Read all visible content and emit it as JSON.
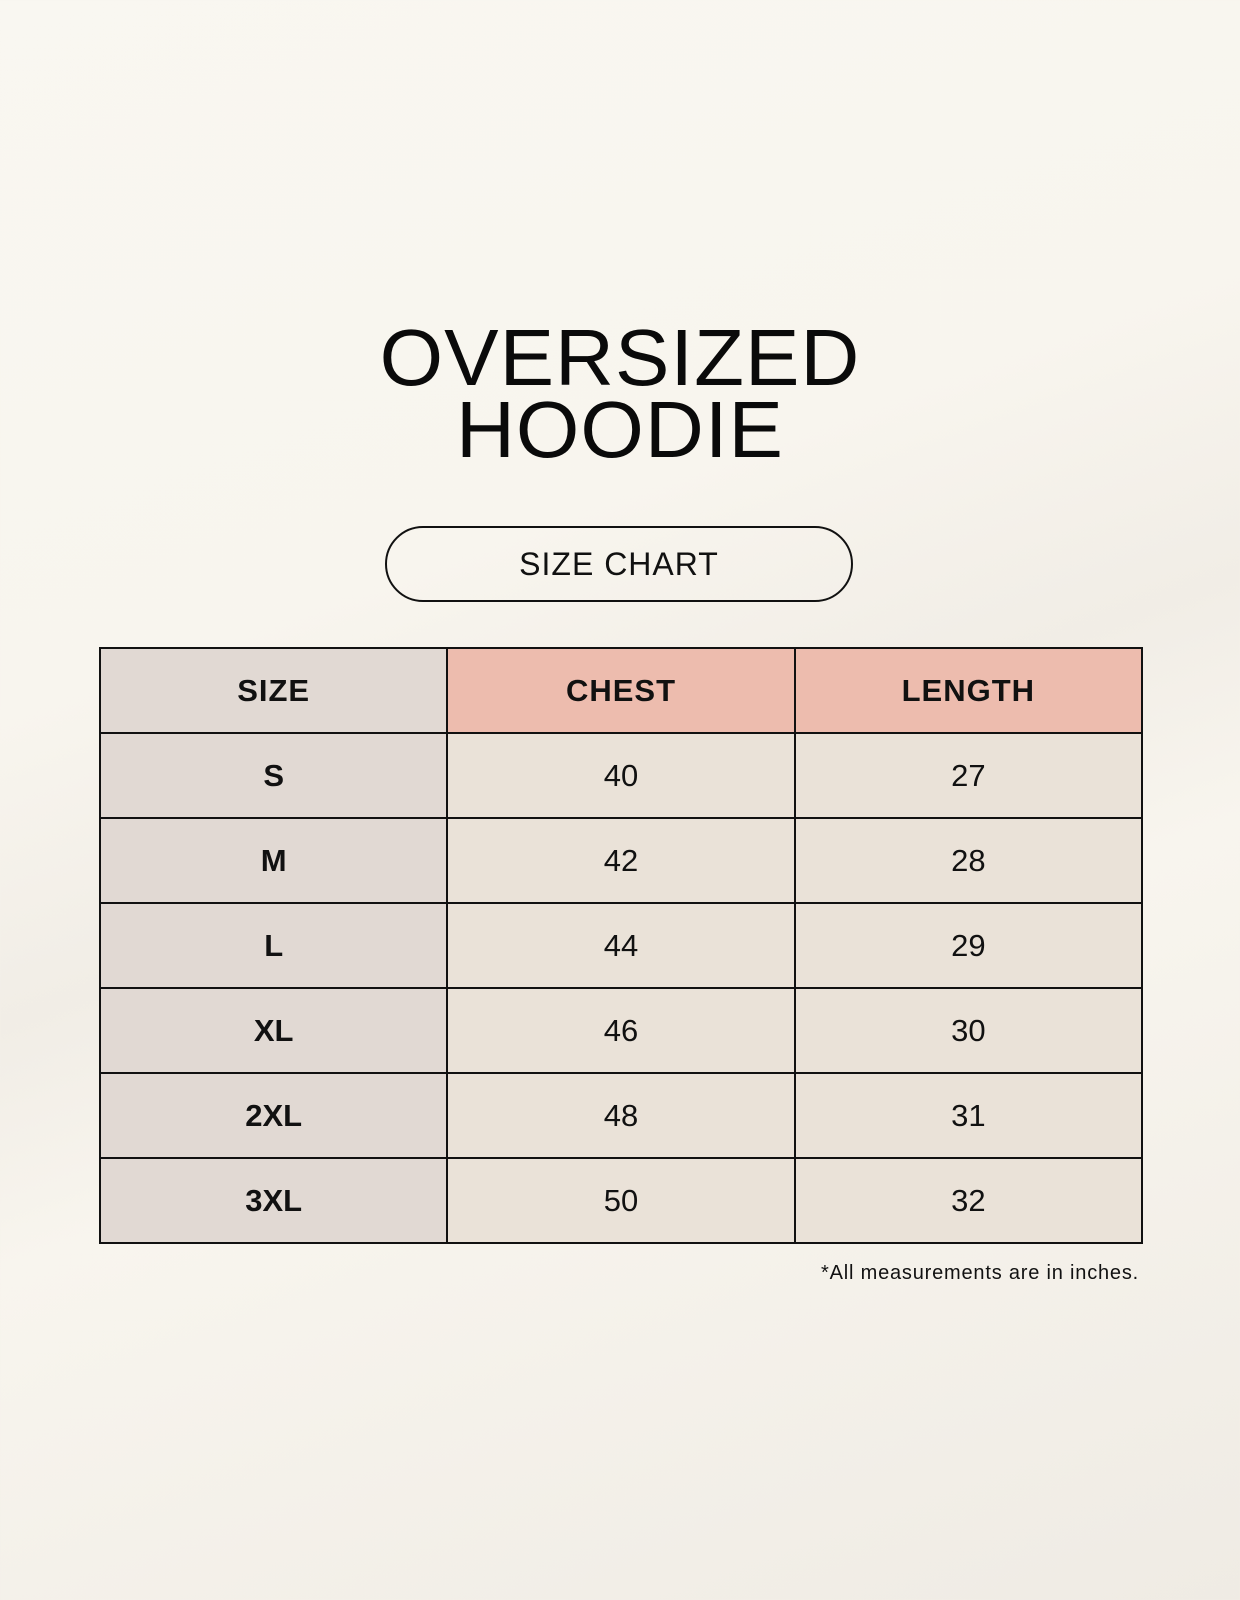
{
  "title": {
    "line1": "OVERSIZED",
    "line2": "HOODIE"
  },
  "subtitle": "SIZE CHART",
  "table": {
    "headers": [
      "SIZE",
      "CHEST",
      "LENGTH"
    ],
    "rows": [
      [
        "S",
        "40",
        "27"
      ],
      [
        "M",
        "42",
        "28"
      ],
      [
        "L",
        "44",
        "29"
      ],
      [
        "XL",
        "46",
        "30"
      ],
      [
        "2XL",
        "48",
        "31"
      ],
      [
        "3XL",
        "50",
        "32"
      ]
    ]
  },
  "footnote": "*All measurements are in inches.",
  "colors": {
    "size_column": "#e1d9d3",
    "header_accent": "#edbcae",
    "value_cells": "#eae2d8"
  }
}
